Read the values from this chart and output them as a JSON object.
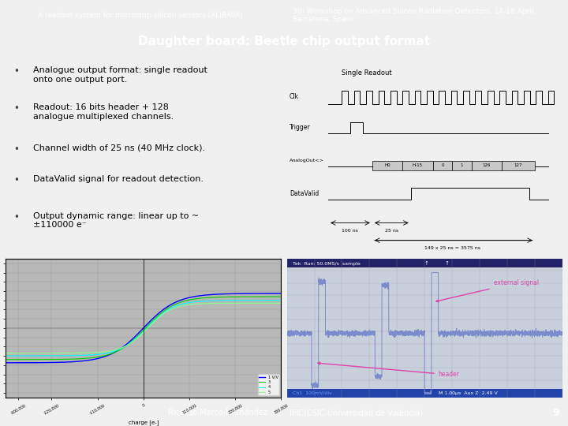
{
  "header_left_text": "A readout system for microstrip silicon sensors (ALIBAVA)",
  "header_right_text": "3th Workshop on Advanced Silicon Radiation Detectors, 14-16 April,\nBarcelona, Spain",
  "title_text": "Daughter board: Beetle chip output format",
  "bullet_points": [
    "Analogue output format: single readout\nonto one output port.",
    "Readout: 16 bits header + 128\nanalogue multiplexed channels.",
    "Channel width of 25 ns (40 MHz clock).",
    "DataValid signal for readout detection.",
    "Output dynamic range: linear up to ~\n±110000 e⁻"
  ],
  "footer_left_text": "Ricardo Marco-Hernández",
  "footer_right_text": "IFIC(CSIC-Universidad de Valencia)",
  "footer_page": "9",
  "header_left_bg": "#1e3054",
  "header_right_bg": "#7f7f7f",
  "title_bg": "#1e3054",
  "footer_left_bg": "#1e3054",
  "footer_right_bg": "#7f7f7f",
  "body_bg": "#f0f0f0",
  "header_text_color": "#ffffff",
  "title_text_color": "#ffffff",
  "bullet_text_color": "#000000",
  "footer_text_color": "#ffffff"
}
